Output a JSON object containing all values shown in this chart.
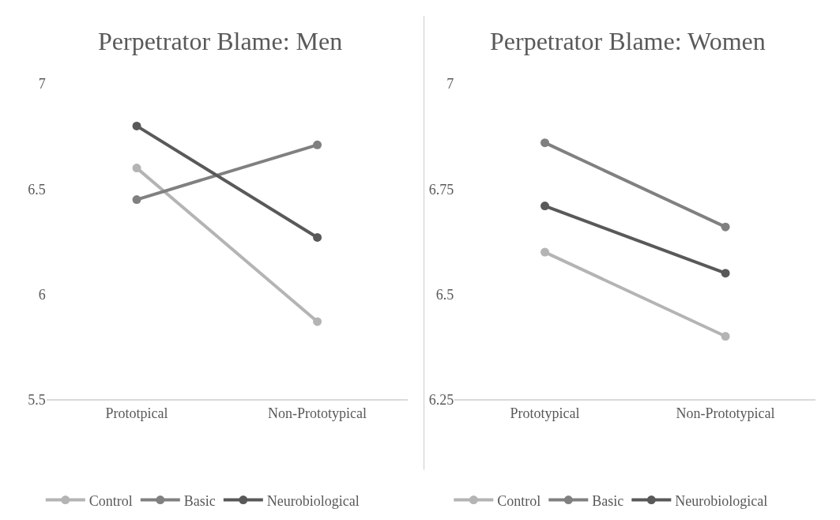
{
  "chart_data": [
    {
      "type": "line",
      "title": "Perpetrator Blame: Men",
      "categories": [
        "Prototpical",
        "Non-Prototypical"
      ],
      "series": [
        {
          "name": "Control",
          "color": "#b4b4b4",
          "values": [
            6.6,
            5.87
          ]
        },
        {
          "name": "Basic",
          "color": "#808080",
          "values": [
            6.45,
            6.71
          ]
        },
        {
          "name": "Neurobiological",
          "color": "#595959",
          "values": [
            6.8,
            6.27
          ]
        }
      ],
      "ylim": [
        5.5,
        7
      ],
      "yticks": [
        5.5,
        6,
        6.5,
        7
      ],
      "legend": "bottom",
      "marker": "circle",
      "line_style": "solid"
    },
    {
      "type": "line",
      "title": "Perpetrator Blame: Women",
      "categories": [
        "Prototypical",
        "Non-Prototypical"
      ],
      "series": [
        {
          "name": "Control",
          "color": "#b4b4b4",
          "values": [
            6.6,
            6.4
          ]
        },
        {
          "name": "Basic",
          "color": "#808080",
          "values": [
            6.86,
            6.66
          ]
        },
        {
          "name": "Neurobiological",
          "color": "#595959",
          "values": [
            6.71,
            6.55
          ]
        }
      ],
      "ylim": [
        6.25,
        7
      ],
      "yticks": [
        6.25,
        6.5,
        6.75,
        7
      ],
      "legend": "bottom",
      "marker": "circle",
      "line_style": "solid"
    }
  ]
}
